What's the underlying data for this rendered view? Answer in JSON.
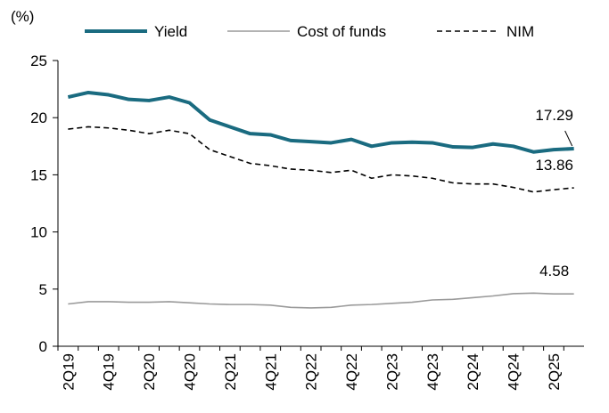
{
  "chart_data": {
    "type": "line",
    "ylabel": "(%)",
    "categories": [
      "2Q19",
      null,
      "4Q19",
      null,
      "2Q20",
      null,
      "4Q20",
      null,
      "2Q21",
      null,
      "4Q21",
      null,
      "2Q22",
      null,
      "4Q22",
      null,
      "2Q23",
      null,
      "4Q23",
      null,
      "2Q24",
      null,
      "4Q24",
      null,
      "2Q25",
      null
    ],
    "series": [
      {
        "name": "Yield",
        "color": "#1a6b80",
        "width": 4,
        "dash": false,
        "values": [
          21.8,
          22.2,
          22.0,
          21.6,
          21.5,
          21.8,
          21.3,
          19.8,
          19.2,
          18.6,
          18.5,
          18.0,
          17.9,
          17.8,
          18.1,
          17.5,
          17.8,
          17.85,
          17.8,
          17.45,
          17.4,
          17.7,
          17.5,
          17.0,
          17.2,
          17.29
        ]
      },
      {
        "name": "Cost of funds",
        "color": "#9a9a9a",
        "width": 1.6,
        "dash": false,
        "values": [
          3.7,
          3.9,
          3.9,
          3.85,
          3.85,
          3.9,
          3.8,
          3.7,
          3.65,
          3.65,
          3.6,
          3.4,
          3.35,
          3.4,
          3.6,
          3.65,
          3.75,
          3.85,
          4.05,
          4.1,
          4.25,
          4.4,
          4.6,
          4.65,
          4.58,
          4.58
        ]
      },
      {
        "name": "NIM",
        "color": "#000000",
        "width": 1.6,
        "dash": true,
        "values": [
          19.0,
          19.2,
          19.1,
          18.9,
          18.6,
          18.9,
          18.6,
          17.2,
          16.6,
          16.0,
          15.8,
          15.5,
          15.4,
          15.2,
          15.4,
          14.7,
          15.0,
          14.9,
          14.7,
          14.3,
          14.2,
          14.2,
          13.9,
          13.5,
          13.7,
          13.86
        ]
      }
    ],
    "ylim": [
      0,
      25
    ],
    "yticks": [
      0,
      5,
      10,
      15,
      20,
      25
    ],
    "grid": false,
    "legend": "top"
  }
}
